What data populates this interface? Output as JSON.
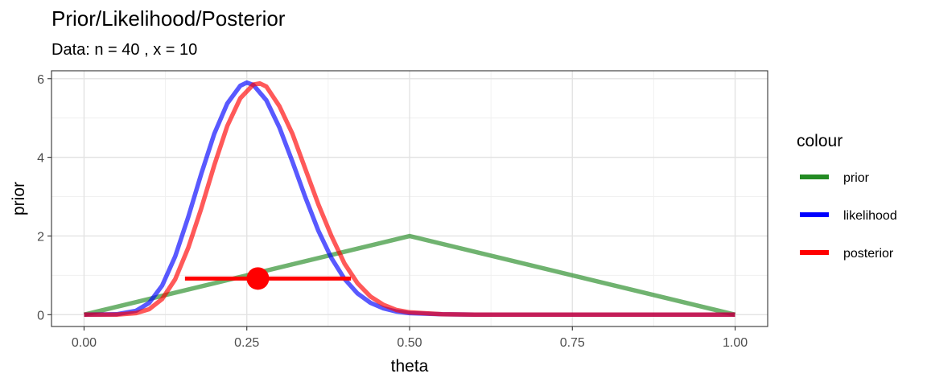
{
  "chart_data": {
    "type": "line",
    "title": "Prior/Likelihood/Posterior",
    "subtitle": "Data: n = 40 , x = 10",
    "xlabel": "theta",
    "ylabel": "prior",
    "xlim": [
      -0.05,
      1.05
    ],
    "ylim": [
      -0.3,
      6.2
    ],
    "x_ticks": [
      0,
      0.25,
      0.5,
      0.75,
      1
    ],
    "x_tick_labels": [
      "0.00",
      "0.25",
      "0.50",
      "0.75",
      "1.00"
    ],
    "y_ticks": [
      0,
      2,
      4,
      6
    ],
    "y_tick_labels": [
      "0",
      "2",
      "4",
      "6"
    ],
    "grid": true,
    "legend": {
      "title": "colour",
      "placement": "right"
    },
    "series": [
      {
        "name": "prior",
        "color": "#238b23",
        "x": [
          0,
          0.5,
          1
        ],
        "y": [
          0,
          2,
          0
        ]
      },
      {
        "name": "likelihood",
        "color": "#0000ff",
        "x": [
          0,
          0.05,
          0.08,
          0.1,
          0.12,
          0.14,
          0.16,
          0.18,
          0.2,
          0.22,
          0.24,
          0.25,
          0.26,
          0.28,
          0.3,
          0.32,
          0.34,
          0.36,
          0.38,
          0.4,
          0.42,
          0.44,
          0.46,
          0.48,
          0.5,
          0.55,
          0.6,
          0.7,
          0.8,
          0.9,
          1
        ],
        "y": [
          0,
          0.01,
          0.1,
          0.3,
          0.74,
          1.48,
          2.48,
          3.58,
          4.6,
          5.37,
          5.82,
          5.9,
          5.84,
          5.45,
          4.76,
          3.89,
          2.98,
          2.13,
          1.44,
          0.91,
          0.54,
          0.3,
          0.16,
          0.08,
          0.04,
          0.01,
          0,
          0,
          0,
          0,
          0
        ]
      },
      {
        "name": "posterior",
        "color": "#ff0000",
        "x": [
          0,
          0.05,
          0.08,
          0.1,
          0.12,
          0.14,
          0.16,
          0.18,
          0.2,
          0.22,
          0.24,
          0.26,
          0.27,
          0.28,
          0.3,
          0.32,
          0.34,
          0.36,
          0.38,
          0.4,
          0.42,
          0.44,
          0.46,
          0.48,
          0.5,
          0.55,
          0.6,
          0.7,
          0.8,
          0.9,
          1
        ],
        "y": [
          0,
          0,
          0.04,
          0.14,
          0.4,
          0.9,
          1.7,
          2.7,
          3.8,
          4.8,
          5.5,
          5.85,
          5.88,
          5.8,
          5.3,
          4.6,
          3.7,
          2.8,
          2.0,
          1.3,
          0.8,
          0.46,
          0.25,
          0.12,
          0.06,
          0.01,
          0,
          0,
          0,
          0,
          0
        ]
      }
    ],
    "interval": {
      "series": "posterior",
      "color": "#ff0000",
      "lower": 0.155,
      "upper": 0.41,
      "y": 0.92,
      "point": 0.267
    }
  }
}
